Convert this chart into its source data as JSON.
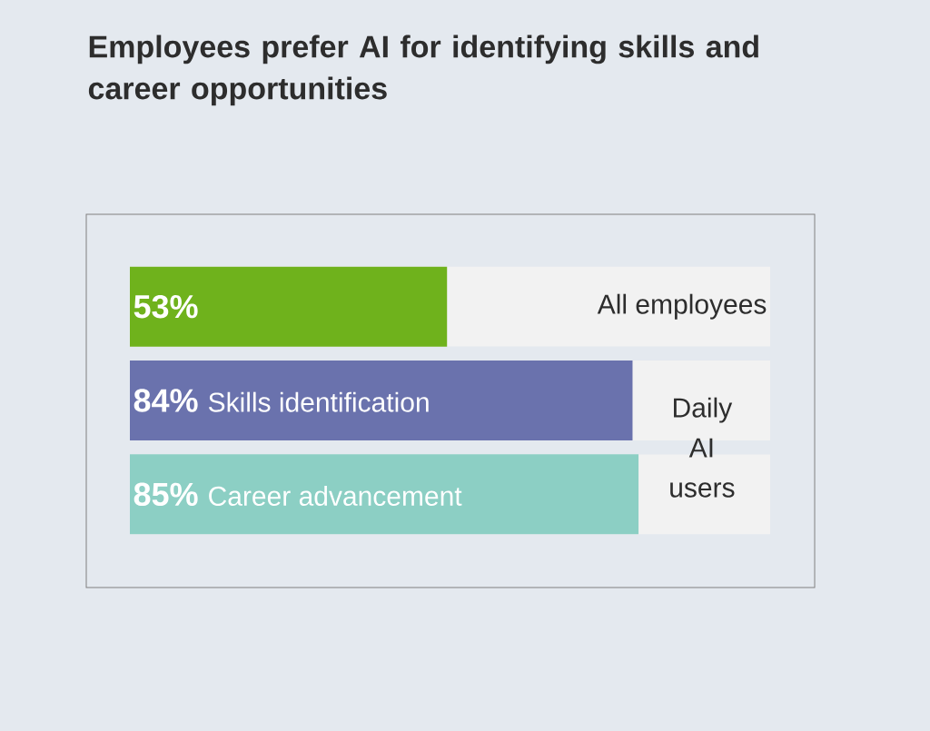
{
  "chart_data": {
    "type": "bar",
    "orientation": "horizontal",
    "title": "Employees prefer AI for identifying skills and career opportunities",
    "categories": [
      "All employees",
      "Skills identification",
      "Career advancement"
    ],
    "values": [
      53,
      84,
      85
    ],
    "value_labels": [
      "53%",
      "84%",
      "85%"
    ],
    "colors": [
      "#6fb21c",
      "#6a72ad",
      "#8ccfc4"
    ],
    "xlim": [
      0,
      107
    ],
    "annotations": [
      "Daily AI users"
    ]
  }
}
